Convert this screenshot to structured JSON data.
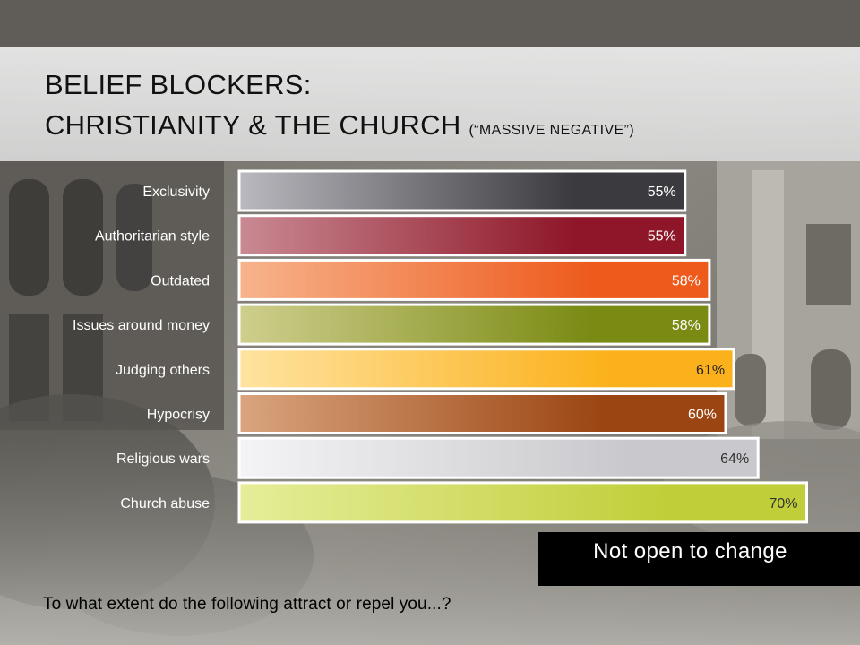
{
  "slide": {
    "title_line1": "BELIEF BLOCKERS:",
    "title_line2": "CHRISTIANITY & THE CHURCH",
    "title_sub": "(“MASSIVE NEGATIVE”)",
    "callout": "Not open to change",
    "question": "To what extent do the following attract or repel you...?"
  },
  "chart_data": {
    "type": "bar",
    "orientation": "horizontal",
    "categories": [
      "Exclusivity",
      "Authoritarian style",
      "Outdated",
      "Issues around money",
      "Judging others",
      "Hypocrisy",
      "Religious wars",
      "Church abuse"
    ],
    "values": [
      55,
      55,
      58,
      58,
      61,
      60,
      64,
      70
    ],
    "value_labels": [
      "55%",
      "55%",
      "58%",
      "58%",
      "61%",
      "60%",
      "64%",
      "70%"
    ],
    "value_suffix": "%",
    "xlim": [
      0,
      70
    ],
    "grid": false,
    "legend": "none",
    "colors": [
      {
        "light": "#b9b9bf",
        "dark": "#3a3a3f"
      },
      {
        "light": "#c98a93",
        "dark": "#8e1628"
      },
      {
        "light": "#f7b48c",
        "dark": "#ee5a1c"
      },
      {
        "light": "#cfcf8e",
        "dark": "#7a8a12"
      },
      {
        "light": "#ffe3a0",
        "dark": "#fbb11b"
      },
      {
        "light": "#d9a47e",
        "dark": "#9b4512"
      },
      {
        "light": "#f4f4f6",
        "dark": "#c9c9cd"
      },
      {
        "light": "#e6ed9a",
        "dark": "#c0cf39"
      }
    ],
    "label_colors": [
      "#ffffff",
      "#ffffff",
      "#ffffff",
      "#ffffff",
      "#222222",
      "#ffffff",
      "#333333",
      "#333333"
    ]
  }
}
